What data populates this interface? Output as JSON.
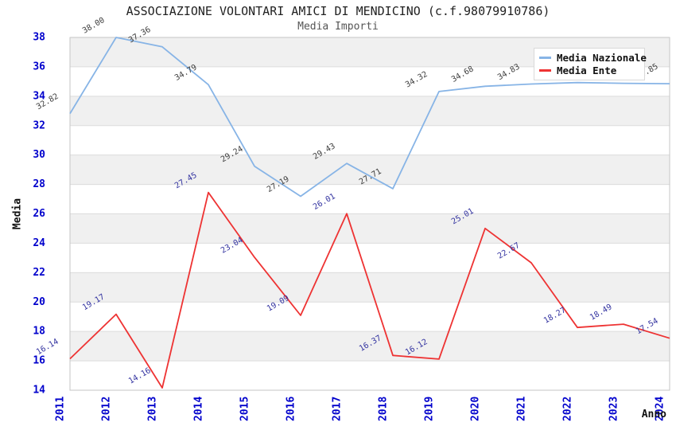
{
  "header": {
    "title": "ASSOCIAZIONE VOLONTARI AMICI DI MENDICINO (c.f.98079910786)",
    "subtitle": "Media Importi"
  },
  "axes": {
    "y_title": "Media",
    "x_title": "Anno"
  },
  "legend": {
    "items": [
      {
        "label": "Media Nazionale",
        "color": "#87b4e6"
      },
      {
        "label": "Media Ente",
        "color": "#ee3333"
      }
    ]
  },
  "chart_data": {
    "type": "line",
    "title": "ASSOCIAZIONE VOLONTARI AMICI DI MENDICINO (c.f.98079910786)",
    "subtitle": "Media Importi",
    "xlabel": "Anno",
    "ylabel": "Media",
    "ylim": [
      14,
      38
    ],
    "ytick_step": 2,
    "grid": true,
    "legend_position": "top-right",
    "categories": [
      "2011",
      "2012",
      "2013",
      "2014",
      "2015",
      "2016",
      "2017",
      "2018",
      "2019",
      "2020",
      "2021",
      "2022",
      "2023",
      "2024"
    ],
    "series": [
      {
        "name": "Media Nazionale",
        "color": "#87b4e6",
        "label_color": "#3d3d3d",
        "values": [
          32.82,
          38.0,
          37.36,
          34.79,
          29.24,
          27.19,
          29.43,
          27.71,
          34.32,
          34.68,
          34.83,
          34.93,
          34.88,
          34.85
        ],
        "labels": [
          "32.82",
          "38.00",
          "37.36",
          "34.79",
          "29.24",
          "27.19",
          "29.43",
          "27.71",
          "34.32",
          "34.68",
          "34.83",
          "",
          "",
          "34.85"
        ]
      },
      {
        "name": "Media Ente",
        "color": "#ee3333",
        "label_color": "#3333a0",
        "values": [
          16.14,
          19.17,
          14.16,
          27.45,
          23.04,
          19.09,
          26.01,
          16.37,
          16.12,
          25.01,
          22.67,
          18.27,
          18.49,
          17.54
        ],
        "labels": [
          "16.14",
          "19.17",
          "14.16",
          "27.45",
          "23.04",
          "19.09",
          "26.01",
          "16.37",
          "16.12",
          "25.01",
          "22.67",
          "18.27",
          "18.49",
          "17.54"
        ]
      }
    ],
    "plot_style": {
      "band_colors": [
        "#f0f0f0",
        "#ffffff"
      ],
      "grid_color": "#dcdcdc",
      "border_color": "#c6c6c6",
      "tick_label_color": "#0000cc"
    }
  }
}
